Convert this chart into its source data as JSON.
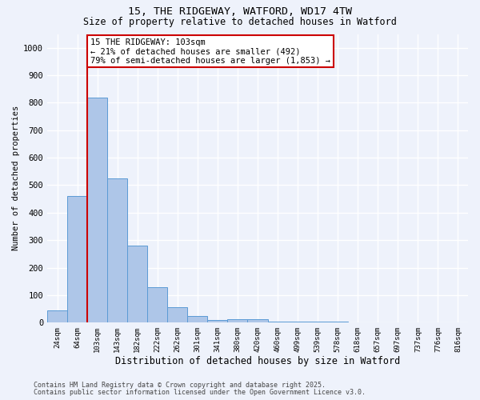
{
  "title1": "15, THE RIDGEWAY, WATFORD, WD17 4TW",
  "title2": "Size of property relative to detached houses in Watford",
  "xlabel": "Distribution of detached houses by size in Watford",
  "ylabel": "Number of detached properties",
  "bar_labels": [
    "24sqm",
    "64sqm",
    "103sqm",
    "143sqm",
    "182sqm",
    "222sqm",
    "262sqm",
    "301sqm",
    "341sqm",
    "380sqm",
    "420sqm",
    "460sqm",
    "499sqm",
    "539sqm",
    "578sqm",
    "618sqm",
    "657sqm",
    "697sqm",
    "737sqm",
    "776sqm",
    "816sqm"
  ],
  "bar_values": [
    45,
    460,
    820,
    525,
    280,
    130,
    55,
    25,
    10,
    12,
    12,
    5,
    3,
    3,
    5,
    1,
    1,
    0,
    0,
    0,
    0
  ],
  "bar_color": "#aec6e8",
  "bar_edge_color": "#5b9bd5",
  "red_line_index": 2,
  "annotation_text": "15 THE RIDGEWAY: 103sqm\n← 21% of detached houses are smaller (492)\n79% of semi-detached houses are larger (1,853) →",
  "annotation_box_color": "#ffffff",
  "annotation_box_edge": "#cc0000",
  "ylim": [
    0,
    1050
  ],
  "yticks": [
    0,
    100,
    200,
    300,
    400,
    500,
    600,
    700,
    800,
    900,
    1000
  ],
  "background_color": "#eef2fb",
  "grid_color": "#ffffff",
  "footer1": "Contains HM Land Registry data © Crown copyright and database right 2025.",
  "footer2": "Contains public sector information licensed under the Open Government Licence v3.0."
}
